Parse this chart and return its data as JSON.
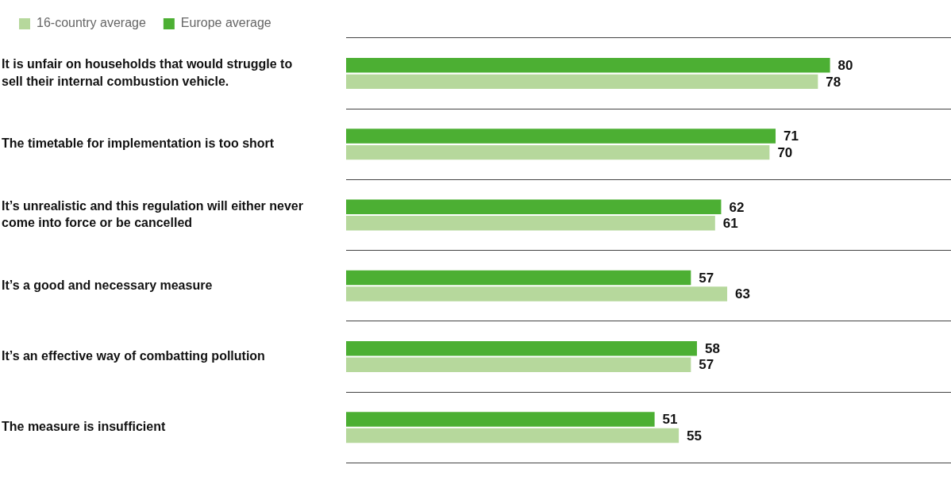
{
  "chart_data": {
    "type": "bar",
    "orientation": "horizontal",
    "categories": [
      "It is unfair on households that would struggle to sell their internal combustion vehicle.",
      "The timetable for implementation is too short",
      "It’s unrealistic and this regulation will either never come into force or be cancelled",
      "It’s a good and necessary measure",
      "It’s an effective way of combatting pollution",
      "The measure is insufficient"
    ],
    "series": [
      {
        "name": "Europe average",
        "color": "#4caf33",
        "values": [
          80,
          71,
          62,
          57,
          58,
          51
        ]
      },
      {
        "name": "16-country average",
        "color": "#b6d89c",
        "values": [
          78,
          70,
          61,
          63,
          57,
          55
        ]
      }
    ],
    "xlim": [
      0,
      100
    ],
    "data_labels": true,
    "grid": "y",
    "legend": "top left",
    "tick_labels": "y"
  }
}
